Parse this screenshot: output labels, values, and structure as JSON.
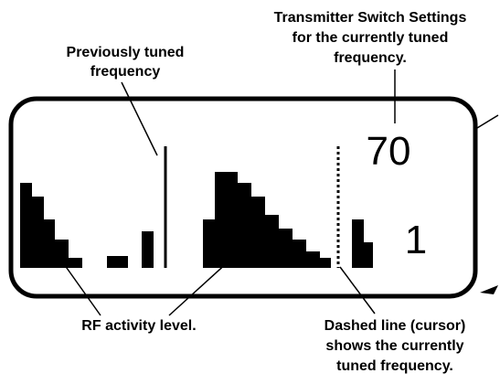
{
  "annotations": {
    "switch_settings": [
      "Transmitter Switch Settings",
      "for the currently tuned",
      "frequency."
    ],
    "previous": [
      "Previously tuned",
      "frequency"
    ],
    "rf_activity": [
      "RF activity level."
    ],
    "cursor": [
      "Dashed line (cursor)",
      "shows the currently",
      "tuned frequency."
    ]
  },
  "display": {
    "switch_setting": "70",
    "channel": "1"
  }
}
